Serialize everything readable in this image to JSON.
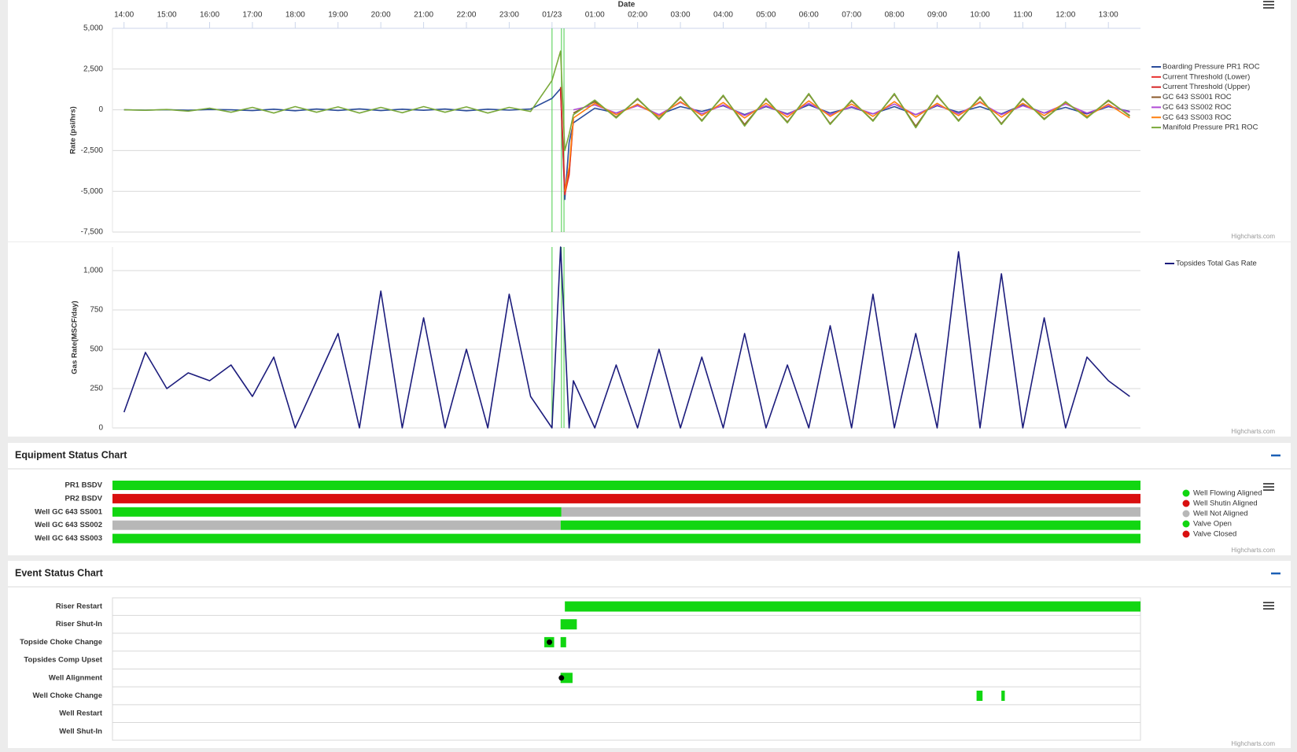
{
  "chart_data": [
    {
      "type": "line",
      "x_title": "Date",
      "y_title": "Rate (psi/hrs)",
      "credits": "Highcharts.com",
      "grid": true,
      "legend": "right",
      "x": [
        0,
        0.5,
        1,
        1.5,
        2,
        2.5,
        3,
        3.5,
        4,
        4.5,
        5,
        5.5,
        6,
        6.5,
        7,
        7.5,
        8,
        8.5,
        9,
        9.5,
        10,
        10.2,
        10.3,
        10.4,
        10.5,
        11,
        11.5,
        12,
        12.5,
        13,
        13.5,
        14,
        14.5,
        15,
        15.5,
        16,
        16.5,
        17,
        17.5,
        18,
        18.5,
        19,
        19.5,
        20,
        20.5,
        21,
        21.5,
        22,
        22.5,
        23,
        23.5
      ],
      "xlim": [
        -0.27,
        23.75
      ],
      "xticks": [
        {
          "value": 0,
          "label": "14:00"
        },
        {
          "value": 1,
          "label": "15:00"
        },
        {
          "value": 2,
          "label": "16:00"
        },
        {
          "value": 3,
          "label": "17:00"
        },
        {
          "value": 4,
          "label": "18:00"
        },
        {
          "value": 5,
          "label": "19:00"
        },
        {
          "value": 6,
          "label": "20:00"
        },
        {
          "value": 7,
          "label": "21:00"
        },
        {
          "value": 8,
          "label": "22:00"
        },
        {
          "value": 9,
          "label": "23:00"
        },
        {
          "value": 10,
          "label": "01/23"
        },
        {
          "value": 11,
          "label": "01:00"
        },
        {
          "value": 12,
          "label": "02:00"
        },
        {
          "value": 13,
          "label": "03:00"
        },
        {
          "value": 14,
          "label": "04:00"
        },
        {
          "value": 15,
          "label": "05:00"
        },
        {
          "value": 16,
          "label": "06:00"
        },
        {
          "value": 17,
          "label": "07:00"
        },
        {
          "value": 18,
          "label": "08:00"
        },
        {
          "value": 19,
          "label": "09:00"
        },
        {
          "value": 20,
          "label": "10:00"
        },
        {
          "value": 21,
          "label": "11:00"
        },
        {
          "value": 22,
          "label": "12:00"
        },
        {
          "value": 23,
          "label": "13:00"
        }
      ],
      "ylim": [
        -7500,
        5000
      ],
      "yticks": [
        {
          "value": 5000,
          "label": "5,000"
        },
        {
          "value": 2500,
          "label": "2,500"
        },
        0,
        {
          "value": -2500,
          "label": "-2,500"
        },
        {
          "value": -5000,
          "label": "-5,000"
        },
        {
          "value": -7500,
          "label": "-7,500"
        }
      ],
      "plot_lines": {
        "color": "#66d466",
        "values": [
          10,
          10.22,
          10.28
        ]
      },
      "series": [
        {
          "name": "Boarding Pressure PR1 ROC",
          "color": "#2b4c9b",
          "values": [
            0,
            -20,
            10,
            -30,
            20,
            0,
            -50,
            40,
            -60,
            50,
            -40,
            60,
            -50,
            40,
            -30,
            50,
            -60,
            40,
            -20,
            50,
            700,
            1300,
            -5500,
            -2000,
            -800,
            100,
            -200,
            300,
            -300,
            200,
            -100,
            250,
            -300,
            200,
            -250,
            300,
            -200,
            150,
            -250,
            200,
            -300,
            250,
            -150,
            200,
            -250,
            300,
            -200,
            150,
            -250,
            200,
            -100
          ]
        },
        {
          "name": "Current Threshold (Lower)",
          "color": "#e8312f",
          "values": [
            null,
            null,
            null,
            null,
            null,
            null,
            null,
            null,
            null,
            null,
            null,
            null,
            null,
            null,
            null,
            null,
            null,
            null,
            null,
            null,
            null,
            1200,
            -5200,
            -4000,
            -600,
            null,
            null,
            null,
            null,
            null,
            null,
            null,
            null,
            null,
            null,
            null,
            null,
            null,
            null,
            null,
            null,
            null,
            null,
            null,
            null,
            null,
            null,
            null,
            null,
            null,
            null
          ]
        },
        {
          "name": "Current Threshold (Upper)",
          "color": "#d62728",
          "values": [
            null,
            null,
            null,
            null,
            null,
            null,
            null,
            null,
            null,
            null,
            null,
            null,
            null,
            null,
            null,
            null,
            null,
            null,
            null,
            null,
            null,
            1400,
            -4900,
            -3900,
            -500,
            null,
            null,
            null,
            null,
            null,
            null,
            null,
            null,
            null,
            null,
            null,
            null,
            null,
            null,
            null,
            null,
            null,
            null,
            null,
            null,
            null,
            null,
            null,
            null,
            null,
            null
          ]
        },
        {
          "name": "GC 643 SS001 ROC",
          "color": "#8b5a2b",
          "values": [
            null,
            null,
            null,
            null,
            null,
            null,
            null,
            null,
            null,
            null,
            null,
            null,
            null,
            null,
            null,
            null,
            null,
            null,
            null,
            null,
            null,
            null,
            null,
            null,
            -200,
            500,
            -450,
            650,
            -550,
            750,
            -650,
            850,
            -900,
            650,
            -750,
            950,
            -850,
            550,
            -650,
            950,
            -1000,
            850,
            -650,
            750,
            -850,
            650,
            -550,
            450,
            -450,
            550,
            -350
          ]
        },
        {
          "name": "GC 643 SS002 ROC",
          "color": "#b04bd6",
          "values": [
            null,
            null,
            null,
            null,
            null,
            null,
            null,
            null,
            null,
            null,
            null,
            null,
            null,
            null,
            null,
            null,
            null,
            null,
            null,
            null,
            null,
            null,
            null,
            null,
            0,
            300,
            -200,
            250,
            -300,
            450,
            -250,
            300,
            -350,
            250,
            -300,
            400,
            -300,
            200,
            -250,
            350,
            -300,
            300,
            -250,
            450,
            -300,
            250,
            -200,
            350,
            -200,
            250,
            -150
          ]
        },
        {
          "name": "GC 643 SS003 ROC",
          "color": "#ff7f0e",
          "values": [
            null,
            null,
            null,
            null,
            null,
            null,
            null,
            null,
            null,
            null,
            null,
            null,
            null,
            null,
            null,
            null,
            null,
            null,
            null,
            null,
            null,
            null,
            -5000,
            -3500,
            -500,
            400,
            -300,
            350,
            -400,
            500,
            -350,
            450,
            -500,
            400,
            -450,
            550,
            -400,
            350,
            -400,
            500,
            -450,
            400,
            -350,
            500,
            -450,
            400,
            -350,
            450,
            -400,
            350,
            -500
          ]
        },
        {
          "name": "Manifold Pressure PR1 ROC",
          "color": "#7aa93a",
          "values": [
            0,
            -30,
            20,
            -80,
            100,
            -150,
            150,
            -200,
            200,
            -150,
            180,
            -200,
            150,
            -180,
            200,
            -150,
            180,
            -200,
            150,
            -100,
            1800,
            3600,
            -2500,
            -1500,
            -300,
            600,
            -500,
            700,
            -600,
            800,
            -700,
            900,
            -1000,
            700,
            -800,
            1000,
            -900,
            600,
            -700,
            1000,
            -1100,
            900,
            -700,
            800,
            -900,
            700,
            -600,
            500,
            -500,
            600,
            -400
          ]
        }
      ]
    },
    {
      "type": "line",
      "y_title": "Gas Rate(MSCF/day)",
      "credits": "Highcharts.com",
      "grid": true,
      "legend": "top-right",
      "x": [
        0,
        0.5,
        1,
        1.5,
        2,
        2.5,
        3,
        3.5,
        4,
        4.5,
        5,
        5.5,
        6,
        6.5,
        7,
        7.5,
        8,
        8.5,
        9,
        9.5,
        10,
        10.2,
        10.3,
        10.4,
        10.5,
        11,
        11.5,
        12,
        12.5,
        13,
        13.5,
        14,
        14.5,
        15,
        15.5,
        16,
        16.5,
        17,
        17.5,
        18,
        18.5,
        19,
        19.5,
        20,
        20.5,
        21,
        21.5,
        22,
        22.5,
        23,
        23.5
      ],
      "xlim": [
        -0.27,
        23.75
      ],
      "ylim": [
        0,
        1150
      ],
      "yticks": [
        0,
        250,
        500,
        750,
        {
          "value": 1000,
          "label": "1,000"
        }
      ],
      "plot_lines": {
        "color": "#66d466",
        "values": [
          10,
          10.22,
          10.28
        ]
      },
      "series": [
        {
          "name": "Topsides Total Gas Rate",
          "color": "#1c1c7c",
          "values": [
            100,
            480,
            250,
            350,
            300,
            400,
            200,
            450,
            0,
            300,
            600,
            0,
            870,
            0,
            700,
            0,
            500,
            0,
            850,
            200,
            0,
            1150,
            600,
            0,
            300,
            0,
            400,
            0,
            500,
            0,
            450,
            0,
            600,
            0,
            400,
            0,
            650,
            0,
            850,
            0,
            600,
            0,
            1120,
            0,
            980,
            0,
            700,
            0,
            450,
            300,
            200
          ]
        }
      ]
    },
    {
      "type": "xrange",
      "title": "Equipment Status Chart",
      "credits": "Highcharts.com",
      "legend": "right",
      "categories": [
        "PR1 BSDV",
        "PR2 BSDV",
        "Well GC 643 SS001",
        "Well GC 643 SS002",
        "Well GC 643 SS003"
      ],
      "xlim": [
        -0.27,
        23.75
      ],
      "series": [
        {
          "name": "Well Flowing Aligned",
          "color": "#11d611",
          "segments": [
            {
              "row": 2,
              "start": -0.27,
              "end": 10.22
            },
            {
              "row": 3,
              "start": 10.2,
              "end": 23.75
            },
            {
              "row": 4,
              "start": -0.27,
              "end": 23.75
            }
          ]
        },
        {
          "name": "Well Shutin Aligned",
          "color": "#d90f0f",
          "segments": []
        },
        {
          "name": "Well Not Aligned",
          "color": "#b7b7b7",
          "segments": [
            {
              "row": 2,
              "start": 10.22,
              "end": 23.75
            },
            {
              "row": 3,
              "start": -0.27,
              "end": 10.2
            }
          ]
        },
        {
          "name": "Valve Open",
          "color": "#11d611",
          "segments": [
            {
              "row": 0,
              "start": -0.27,
              "end": 23.75
            }
          ]
        },
        {
          "name": "Valve Closed",
          "color": "#d90f0f",
          "segments": [
            {
              "row": 1,
              "start": -0.27,
              "end": 23.75
            }
          ]
        }
      ]
    },
    {
      "type": "xrange",
      "title": "Event Status Chart",
      "credits": "Highcharts.com",
      "categories": [
        "Riser Restart",
        "Riser Shut-In",
        "Topside Choke Change",
        "Topsides Comp Upset",
        "Well Alignment",
        "Well Choke Change",
        "Well Restart",
        "Well Shut-In"
      ],
      "xlim": [
        -0.27,
        23.75
      ],
      "series": [
        {
          "color": "#11d611",
          "segments": [
            {
              "row": 0,
              "start": 10.3,
              "end": 23.75
            },
            {
              "row": 1,
              "start": 10.2,
              "end": 10.58
            },
            {
              "row": 2,
              "start": 9.82,
              "end": 10.05
            },
            {
              "row": 2,
              "start": 10.2,
              "end": 10.33
            },
            {
              "row": 4,
              "start": 10.2,
              "end": 10.48
            },
            {
              "row": 5,
              "start": 19.92,
              "end": 20.06
            },
            {
              "row": 5,
              "start": 20.5,
              "end": 20.58
            }
          ]
        }
      ],
      "markers": {
        "color": "#000000",
        "points": [
          {
            "row": 2,
            "x": 9.94
          },
          {
            "row": 4,
            "x": 10.22
          }
        ]
      }
    }
  ]
}
